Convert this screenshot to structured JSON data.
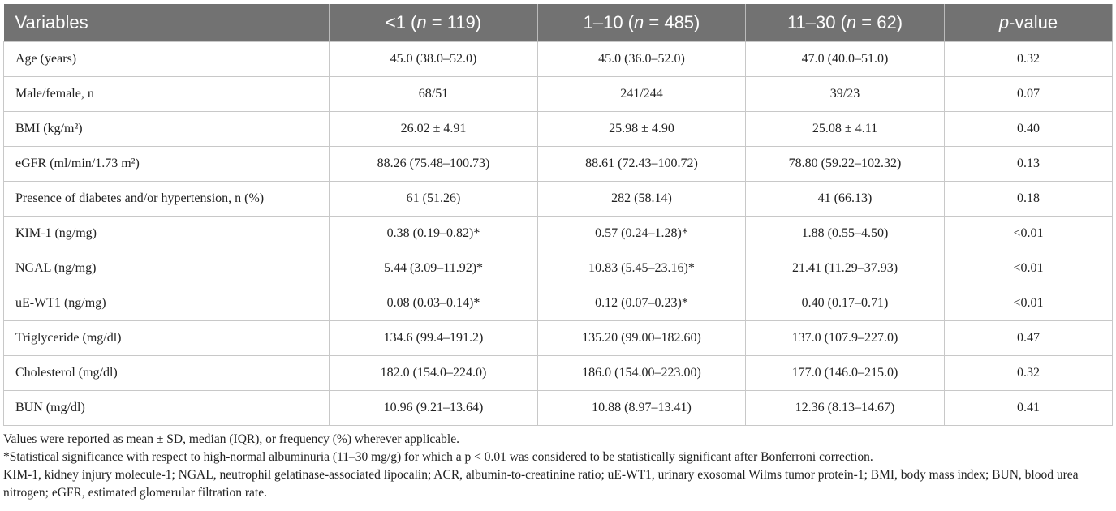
{
  "table": {
    "header": [
      [
        "Variables"
      ],
      [
        "<1 (",
        "n",
        " = 119)"
      ],
      [
        "1–10 (",
        "n",
        " = 485)"
      ],
      [
        "11–30 (",
        "n",
        " =  62)"
      ],
      [
        "",
        "p",
        "-value"
      ]
    ],
    "rows": [
      [
        "Age (years)",
        "45.0 (38.0–52.0)",
        "45.0 (36.0–52.0)",
        "47.0 (40.0–51.0)",
        "0.32"
      ],
      [
        "Male/female, n",
        "68/51",
        "241/244",
        "39/23",
        "0.07"
      ],
      [
        "BMI (kg/m²)",
        "26.02 ± 4.91",
        "25.98 ± 4.90",
        "25.08 ± 4.11",
        "0.40"
      ],
      [
        "eGFR (ml/min/1.73 m²)",
        "88.26 (75.48–100.73)",
        "88.61 (72.43–100.72)",
        "78.80 (59.22–102.32)",
        "0.13"
      ],
      [
        "Presence of diabetes and/or hypertension, n (%)",
        "61 (51.26)",
        "282 (58.14)",
        "41 (66.13)",
        "0.18"
      ],
      [
        "KIM-1 (ng/mg)",
        "0.38 (0.19–0.82)*",
        "0.57 (0.24–1.28)*",
        "1.88 (0.55–4.50)",
        "<0.01"
      ],
      [
        "NGAL (ng/mg)",
        "5.44 (3.09–11.92)*",
        "10.83 (5.45–23.16)*",
        "21.41 (11.29–37.93)",
        "<0.01"
      ],
      [
        "uE-WT1 (ng/mg)",
        "0.08 (0.03–0.14)*",
        "0.12 (0.07–0.23)*",
        "0.40 (0.17–0.71)",
        "<0.01"
      ],
      [
        "Triglyceride (mg/dl)",
        "134.6 (99.4–191.2)",
        "135.20 (99.00–182.60)",
        "137.0 (107.9–227.0)",
        "0.47"
      ],
      [
        "Cholesterol (mg/dl)",
        "182.0 (154.0–224.0)",
        "186.0 (154.00–223.00)",
        "177.0 (146.0–215.0)",
        "0.32"
      ],
      [
        "BUN (mg/dl)",
        "10.96 (9.21–13.64)",
        "10.88 (8.97–13.41)",
        "12.36 (8.13–14.67)",
        "0.41"
      ]
    ],
    "footnotes": [
      "Values were reported as mean ± SD, median (IQR), or frequency (%) wherever applicable.",
      "*Statistical significance with respect to high-normal albuminuria (11–30 mg/g) for which a p < 0.01 was considered to be statistically significant after Bonferroni correction.",
      "KIM-1, kidney injury molecule-1; NGAL, neutrophil gelatinase-associated lipocalin; ACR, albumin-to-creatinine ratio; uE-WT1, urinary exosomal Wilms tumor protein-1; BMI, body mass index; BUN, blood urea nitrogen; eGFR, estimated glomerular filtration rate."
    ]
  }
}
